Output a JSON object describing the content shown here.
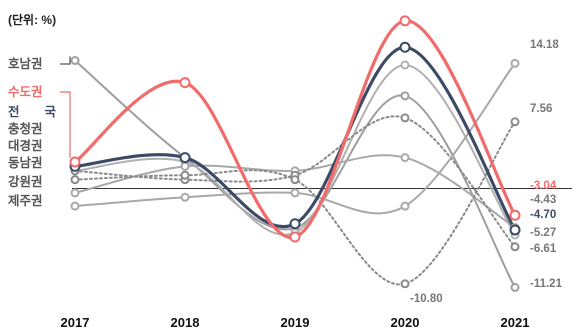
{
  "chart_data": {
    "type": "line",
    "unit_label": "(단위: %)",
    "categories": [
      "2017",
      "2018",
      "2019",
      "2020",
      "2021"
    ],
    "ylim": [
      -14,
      20
    ],
    "grid": false,
    "series": [
      {
        "name": "호남권",
        "values": [
          14.5,
          3.5,
          -4.5,
          10.5,
          -11.21
        ],
        "color": "#9e9e9e",
        "style": "solid",
        "width": 2
      },
      {
        "name": "수도권",
        "values": [
          3.0,
          12.0,
          -5.5,
          19.0,
          -3.04
        ],
        "color": "#f26b6b",
        "style": "solid",
        "width": 3.2
      },
      {
        "name": "전 국",
        "values": [
          2.5,
          3.5,
          -4.0,
          16.0,
          -4.7
        ],
        "color": "#3d4a66",
        "style": "solid",
        "width": 3.2
      },
      {
        "name": "충청권",
        "values": [
          2.0,
          3.0,
          -5.0,
          14.0,
          -5.27
        ],
        "color": "#b0b0b0",
        "style": "solid",
        "width": 2
      },
      {
        "name": "대경권",
        "values": [
          -0.5,
          2.5,
          2.0,
          3.5,
          -4.43
        ],
        "color": "#a8a8a8",
        "style": "solid",
        "width": 2
      },
      {
        "name": "동남권",
        "values": [
          2.0,
          1.0,
          1.5,
          8.0,
          -6.61
        ],
        "color": "#8a8a8a",
        "style": "dotted",
        "width": 2
      },
      {
        "name": "강원권",
        "values": [
          1.0,
          1.5,
          1.0,
          -10.8,
          7.56
        ],
        "color": "#8a8a8a",
        "style": "dotted",
        "width": 2
      },
      {
        "name": "제주권",
        "values": [
          -2.0,
          -1.0,
          -0.5,
          -2.0,
          14.18
        ],
        "color": "#a8a8a8",
        "style": "solid",
        "width": 2
      }
    ],
    "end_labels": [
      {
        "text": "14.18",
        "value": 14.18,
        "color": "#777777"
      },
      {
        "text": "7.56",
        "value": 7.56,
        "color": "#777777"
      },
      {
        "text": "-3.04",
        "value": -3.04,
        "color": "#f26b6b"
      },
      {
        "text": "-4.43",
        "value": -4.43,
        "color": "#777777"
      },
      {
        "text": "-4.70",
        "value": -4.7,
        "color": "#3d4a66"
      },
      {
        "text": "-5.27",
        "value": -5.27,
        "color": "#777777"
      },
      {
        "text": "-6.61",
        "value": -6.61,
        "color": "#777777"
      },
      {
        "text": "-11.21",
        "value": -11.21,
        "color": "#777777"
      }
    ],
    "annotations": [
      {
        "text": "-10.80",
        "value": -10.8,
        "category": "2020",
        "color": "#777777"
      }
    ]
  }
}
